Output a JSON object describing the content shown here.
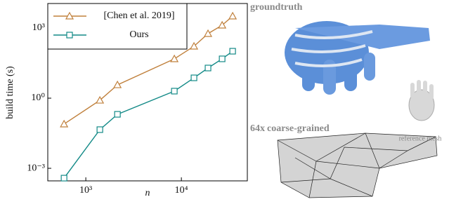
{
  "chart_data": {
    "type": "line",
    "log_x": true,
    "log_y": true,
    "xlabel": "n",
    "ylabel": "build time (s)",
    "x": [
      592,
      1403,
      2143,
      8440,
      13550,
      19000,
      26700,
      34400
    ],
    "series": [
      {
        "name": "[Chen et al. 2019]",
        "color": "#c0803c",
        "marker": "triangle",
        "values": [
          0.078,
          0.81,
          3.7,
          48,
          166,
          575,
          1320,
          3240
        ]
      },
      {
        "name": "Ours",
        "color": "#138a87",
        "marker": "square",
        "values": [
          0.00038,
          0.045,
          0.204,
          2.0,
          7.4,
          19.5,
          48,
          102
        ]
      }
    ],
    "xlim": [
      400,
      49000
    ],
    "ylim": [
      0.00029,
      11200
    ],
    "xticks": [
      {
        "value": 1000,
        "label": "10³"
      },
      {
        "value": 10000,
        "label": "10⁴"
      }
    ],
    "yticks": [
      {
        "value": 0.001,
        "label": "10⁻³"
      },
      {
        "value": 1,
        "label": "10⁰"
      },
      {
        "value": 1000,
        "label": "10³"
      }
    ],
    "legend": "upper left"
  },
  "panels": {
    "top_label": "groundtruth",
    "bottom_label_prefix": "64x",
    "bottom_label": "coarse-grained",
    "reference_label": "reference mesh"
  }
}
